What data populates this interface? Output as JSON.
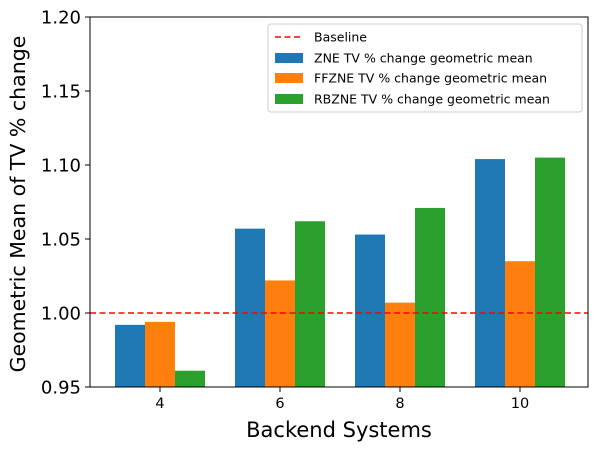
{
  "chart_data": {
    "type": "bar",
    "xlabel": "Backend Systems",
    "ylabel": "Geometric Mean of TV % change",
    "categories": [
      "4",
      "6",
      "8",
      "10"
    ],
    "ylim": [
      0.95,
      1.2
    ],
    "yticks": [
      "0.95",
      "1.00",
      "1.05",
      "1.10",
      "1.15",
      "1.20"
    ],
    "grid": false,
    "legend_position": "top-right",
    "baseline": {
      "name": "Baseline",
      "value": 1.0,
      "color": "#ff0000",
      "style": "dashed"
    },
    "series": [
      {
        "name": "ZNE TV % change geometric mean",
        "color": "#1f77b4",
        "values": [
          0.992,
          1.057,
          1.053,
          1.104
        ]
      },
      {
        "name": "FFZNE TV % change geometric mean",
        "color": "#ff7f0e",
        "values": [
          0.994,
          1.022,
          1.007,
          1.035
        ]
      },
      {
        "name": "RBZNE TV % change geometric mean",
        "color": "#2ca02c",
        "values": [
          0.961,
          1.062,
          1.071,
          1.105
        ]
      }
    ]
  }
}
